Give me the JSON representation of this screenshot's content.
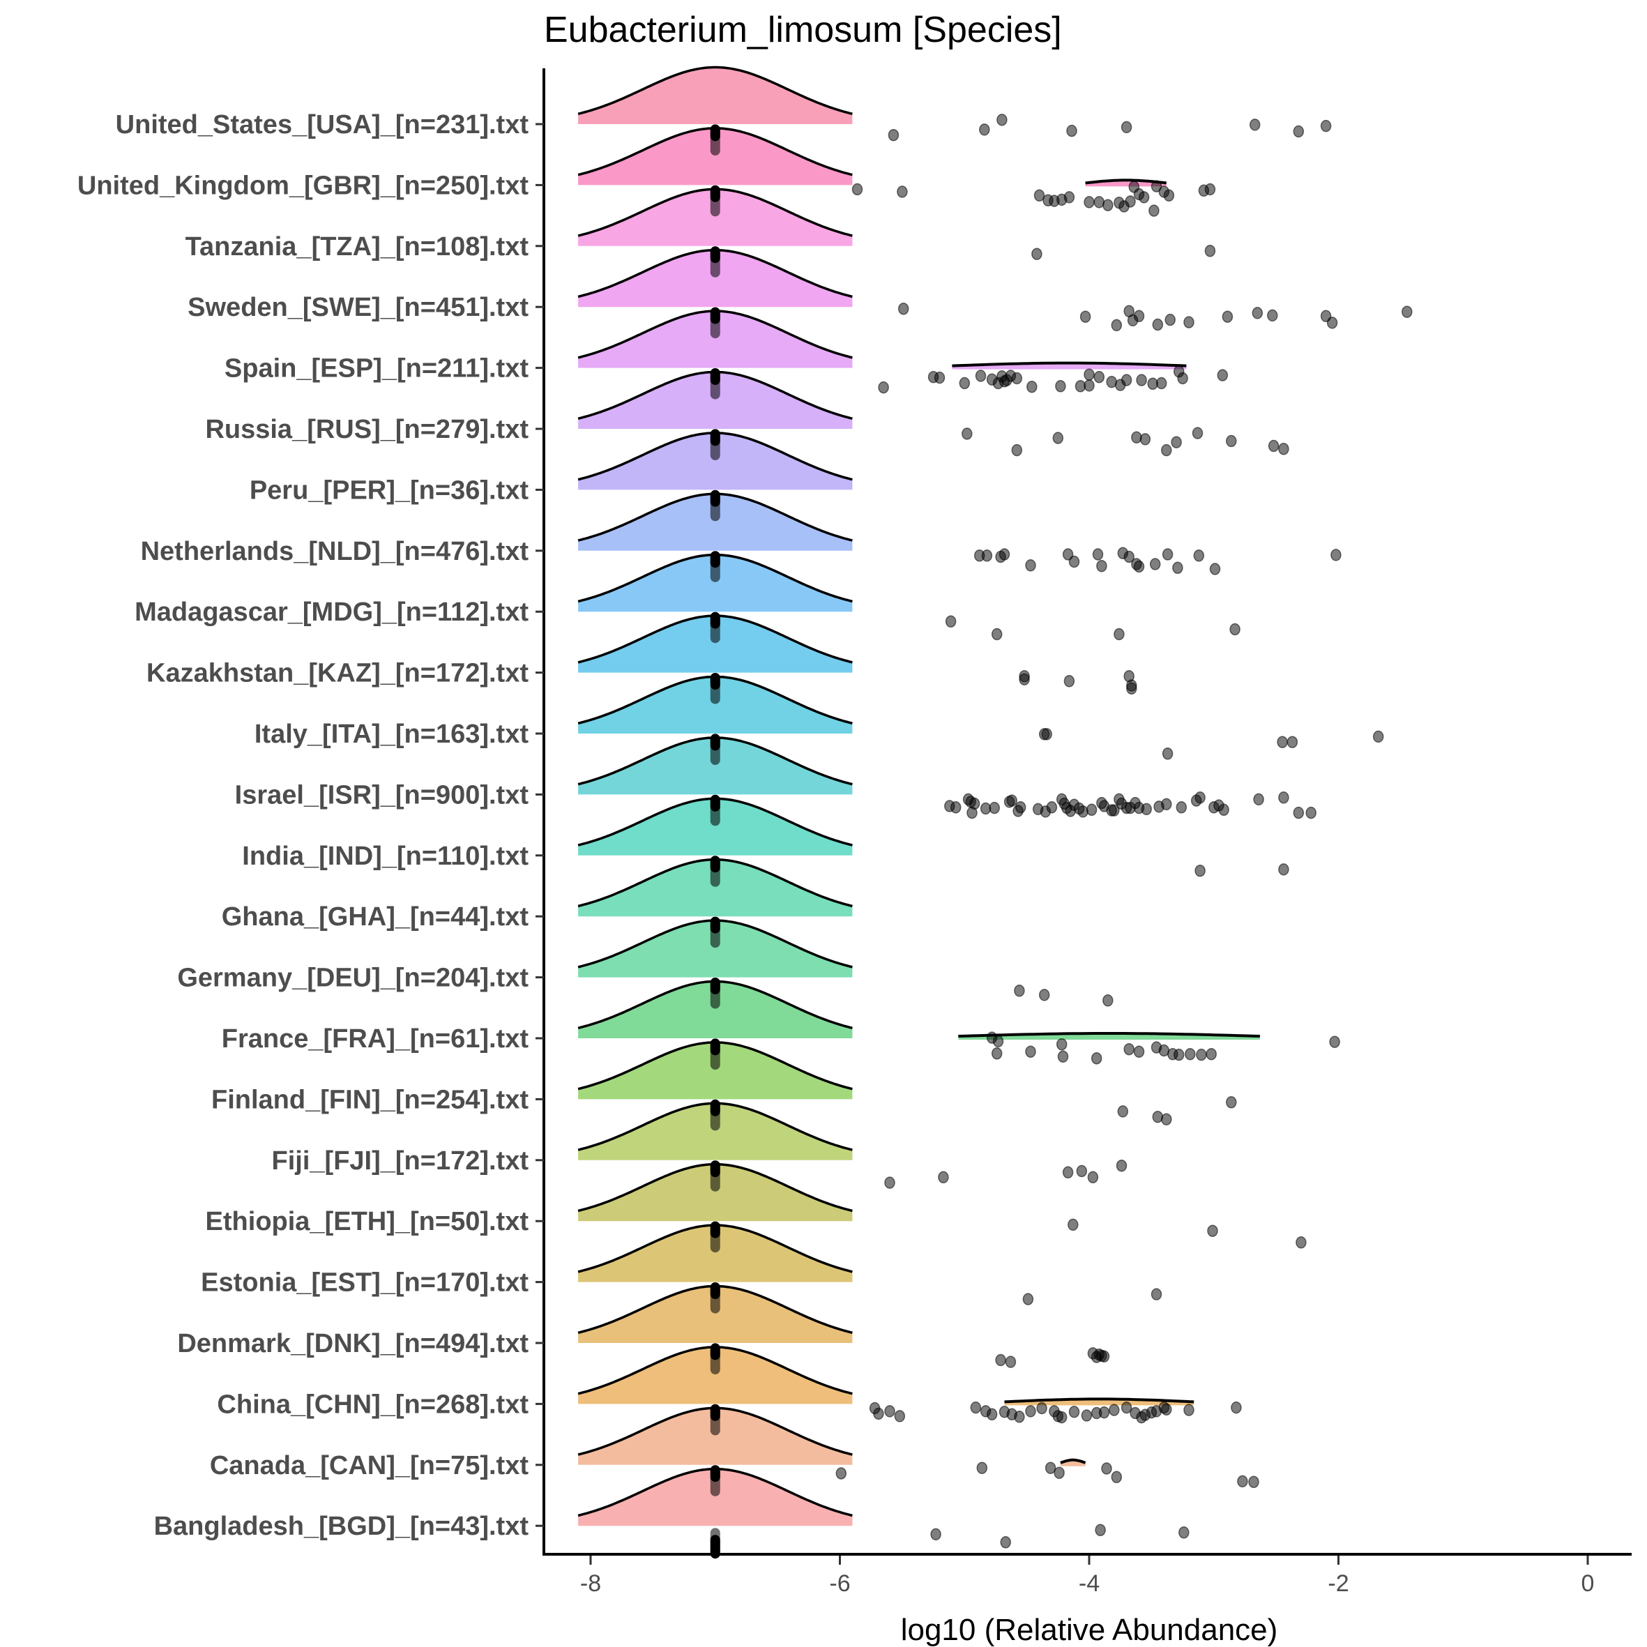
{
  "chart_data": {
    "type": "ridgeline",
    "title": "Eubacterium_limosum [Species]",
    "xlabel": "log10 (Relative Abundance)",
    "ylabel": "",
    "xlim": [
      -8.4,
      0.5
    ],
    "xticks": [
      -8,
      -6,
      -4,
      -2,
      0
    ],
    "xtick_labels": [
      "-8",
      "-6",
      "-4",
      "-2",
      "0"
    ],
    "grid": false,
    "legend": "none",
    "median_marker_x": -7,
    "density_peak_x": -7,
    "point_color": "#000000",
    "point_alpha": 0.5,
    "categories": [
      {
        "label": "United_States_[USA]_[n=231].txt",
        "color": "#F8A0B8",
        "small_ridge": null,
        "points": [
          [
            -5.57,
            0.18
          ],
          [
            -4.84,
            0.09
          ],
          [
            -4.7,
            -0.07
          ],
          [
            -4.14,
            0.11
          ],
          [
            -3.7,
            0.05
          ],
          [
            -2.67,
            0.01
          ],
          [
            -2.32,
            0.12
          ],
          [
            -2.1,
            0.03
          ]
        ]
      },
      {
        "label": "United_Kingdom_[GBR]_[n=250].txt",
        "color": "#FA98C8",
        "small_ridge": [
          -4.03,
          -3.38
        ],
        "points": [
          [
            -5.86,
            0.07
          ],
          [
            -5.5,
            0.11
          ],
          [
            -4.4,
            0.17
          ],
          [
            -4.33,
            0.25
          ],
          [
            -4.28,
            0.26
          ],
          [
            -4.22,
            0.24
          ],
          [
            -4.16,
            0.2
          ],
          [
            -4.0,
            0.28
          ],
          [
            -3.92,
            0.28
          ],
          [
            -3.85,
            0.33
          ],
          [
            -3.76,
            0.29
          ],
          [
            -3.72,
            0.35
          ],
          [
            -3.67,
            0.27
          ],
          [
            -3.64,
            0.03
          ],
          [
            -3.6,
            0.15
          ],
          [
            -3.56,
            0.2
          ],
          [
            -3.48,
            0.42
          ],
          [
            -3.46,
            0.02
          ],
          [
            -3.4,
            0.11
          ],
          [
            -3.36,
            0.17
          ],
          [
            -3.08,
            0.09
          ],
          [
            -3.03,
            0.07
          ]
        ]
      },
      {
        "label": "Tanzania_[TZA]_[n=108].txt",
        "color": "#F8A6E4",
        "small_ridge": null,
        "points": [
          [
            -4.42,
            0.13
          ],
          [
            -3.03,
            0.08
          ]
        ]
      },
      {
        "label": "Sweden_[SWE]_[n=451].txt",
        "color": "#F0A6F0",
        "small_ridge": null,
        "points": [
          [
            -5.49,
            0.03
          ],
          [
            -4.03,
            0.16
          ],
          [
            -3.78,
            0.3
          ],
          [
            -3.68,
            0.07
          ],
          [
            -3.65,
            0.22
          ],
          [
            -3.6,
            0.15
          ],
          [
            -3.45,
            0.29
          ],
          [
            -3.35,
            0.21
          ],
          [
            -3.2,
            0.25
          ],
          [
            -2.89,
            0.16
          ],
          [
            -2.65,
            0.1
          ],
          [
            -2.53,
            0.14
          ],
          [
            -2.1,
            0.15
          ],
          [
            -2.05,
            0.26
          ],
          [
            -1.45,
            0.08
          ]
        ]
      },
      {
        "label": "Spain_[ESP]_[n=211].txt",
        "color": "#E6AAF6",
        "small_ridge": [
          -5.1,
          -3.22
        ],
        "points": [
          [
            -5.65,
            0.32
          ],
          [
            -5.25,
            0.15
          ],
          [
            -5.2,
            0.16
          ],
          [
            -5.0,
            0.25
          ],
          [
            -4.87,
            0.13
          ],
          [
            -4.78,
            0.19
          ],
          [
            -4.73,
            0.25
          ],
          [
            -4.7,
            0.14
          ],
          [
            -4.68,
            0.22
          ],
          [
            -4.66,
            0.2
          ],
          [
            -4.63,
            0.13
          ],
          [
            -4.58,
            0.17
          ],
          [
            -4.46,
            0.31
          ],
          [
            -4.23,
            0.3
          ],
          [
            -4.07,
            0.3
          ],
          [
            -4.0,
            0.29
          ],
          [
            -4.0,
            0.11
          ],
          [
            -3.92,
            0.15
          ],
          [
            -3.82,
            0.23
          ],
          [
            -3.75,
            0.28
          ],
          [
            -3.7,
            0.2
          ],
          [
            -3.58,
            0.2
          ],
          [
            -3.49,
            0.26
          ],
          [
            -3.42,
            0.25
          ],
          [
            -3.28,
            0.06
          ],
          [
            -3.25,
            0.17
          ],
          [
            -2.93,
            0.12
          ]
        ]
      },
      {
        "label": "Russia_[RUS]_[n=279].txt",
        "color": "#D6B0F8",
        "small_ridge": null,
        "points": [
          [
            -4.98,
            0.08
          ],
          [
            -4.58,
            0.35
          ],
          [
            -4.25,
            0.15
          ],
          [
            -3.62,
            0.14
          ],
          [
            -3.55,
            0.17
          ],
          [
            -3.38,
            0.35
          ],
          [
            -3.3,
            0.22
          ],
          [
            -3.13,
            0.07
          ],
          [
            -2.86,
            0.2
          ],
          [
            -2.52,
            0.28
          ],
          [
            -2.44,
            0.33
          ]
        ]
      },
      {
        "label": "Peru_[PER]_[n=36].txt",
        "color": "#C2B6F8",
        "small_ridge": null,
        "points": []
      },
      {
        "label": "Netherlands_[NLD]_[n=476].txt",
        "color": "#A8C0F8",
        "small_ridge": null,
        "points": [
          [
            -4.88,
            0.08
          ],
          [
            -4.82,
            0.08
          ],
          [
            -4.71,
            0.1
          ],
          [
            -4.68,
            0.06
          ],
          [
            -4.47,
            0.24
          ],
          [
            -4.17,
            0.06
          ],
          [
            -4.12,
            0.18
          ],
          [
            -3.93,
            0.06
          ],
          [
            -3.9,
            0.25
          ],
          [
            -3.73,
            0.04
          ],
          [
            -3.68,
            0.1
          ],
          [
            -3.62,
            0.22
          ],
          [
            -3.6,
            0.26
          ],
          [
            -3.47,
            0.22
          ],
          [
            -3.37,
            0.06
          ],
          [
            -3.29,
            0.28
          ],
          [
            -3.12,
            0.08
          ],
          [
            -2.99,
            0.3
          ],
          [
            -2.02,
            0.07
          ]
        ]
      },
      {
        "label": "Madagascar_[MDG]_[n=112].txt",
        "color": "#88C8F6",
        "small_ridge": null,
        "points": [
          [
            -5.11,
            0.16
          ],
          [
            -4.74,
            0.37
          ],
          [
            -3.76,
            0.37
          ],
          [
            -2.83,
            0.29
          ]
        ]
      },
      {
        "label": "Kazakhstan_[KAZ]_[n=172].txt",
        "color": "#74CCEE",
        "small_ridge": null,
        "points": [
          [
            -4.52,
            0.06
          ],
          [
            -4.52,
            0.11
          ],
          [
            -4.16,
            0.14
          ],
          [
            -3.68,
            0.06
          ],
          [
            -3.66,
            0.21
          ],
          [
            -3.66,
            0.26
          ]
        ]
      },
      {
        "label": "Italy_[ITA]_[n=163].txt",
        "color": "#70D2E4",
        "small_ridge": null,
        "points": [
          [
            -4.36,
            0.01
          ],
          [
            -4.34,
            0.01
          ],
          [
            -3.37,
            0.33
          ],
          [
            -2.45,
            0.14
          ],
          [
            -2.37,
            0.14
          ],
          [
            -1.68,
            0.05
          ]
        ]
      },
      {
        "label": "Israel_[ISR]_[n=900].txt",
        "color": "#74D6D8",
        "small_ridge": null,
        "points": [
          [
            -5.12,
            0.19
          ],
          [
            -5.07,
            0.21
          ],
          [
            -4.97,
            0.08
          ],
          [
            -4.95,
            0.12
          ],
          [
            -4.94,
            0.3
          ],
          [
            -4.92,
            0.15
          ],
          [
            -4.83,
            0.23
          ],
          [
            -4.76,
            0.22
          ],
          [
            -4.64,
            0.12
          ],
          [
            -4.62,
            0.1
          ],
          [
            -4.57,
            0.27
          ],
          [
            -4.55,
            0.21
          ],
          [
            -4.41,
            0.24
          ],
          [
            -4.35,
            0.28
          ],
          [
            -4.3,
            0.21
          ],
          [
            -4.22,
            0.08
          ],
          [
            -4.2,
            0.15
          ],
          [
            -4.18,
            0.22
          ],
          [
            -4.15,
            0.27
          ],
          [
            -4.12,
            0.17
          ],
          [
            -4.08,
            0.23
          ],
          [
            -4.05,
            0.28
          ],
          [
            -3.98,
            0.25
          ],
          [
            -3.9,
            0.14
          ],
          [
            -3.88,
            0.19
          ],
          [
            -3.82,
            0.26
          ],
          [
            -3.8,
            0.26
          ],
          [
            -3.76,
            0.08
          ],
          [
            -3.74,
            0.15
          ],
          [
            -3.7,
            0.22
          ],
          [
            -3.67,
            0.22
          ],
          [
            -3.63,
            0.14
          ],
          [
            -3.6,
            0.22
          ],
          [
            -3.54,
            0.24
          ],
          [
            -3.44,
            0.2
          ],
          [
            -3.38,
            0.16
          ],
          [
            -3.26,
            0.21
          ],
          [
            -3.14,
            0.1
          ],
          [
            -3.0,
            0.21
          ],
          [
            -2.96,
            0.18
          ],
          [
            -2.92,
            0.25
          ],
          [
            -2.64,
            0.08
          ],
          [
            -2.32,
            0.3
          ],
          [
            -2.22,
            0.3
          ],
          [
            -3.11,
            0.05
          ],
          [
            -2.44,
            0.05
          ]
        ]
      },
      {
        "label": "India_[IND]_[n=110].txt",
        "color": "#70DCCA",
        "small_ridge": null,
        "points": [
          [
            -3.11,
            0.25
          ],
          [
            -2.44,
            0.23
          ]
        ]
      },
      {
        "label": "Ghana_[GHA]_[n=44].txt",
        "color": "#78DEBC",
        "small_ridge": null,
        "points": []
      },
      {
        "label": "Germany_[DEU]_[n=204].txt",
        "color": "#7EDEB0",
        "small_ridge": null,
        "points": [
          [
            -4.56,
            0.22
          ],
          [
            -4.36,
            0.29
          ],
          [
            -3.85,
            0.38
          ]
        ]
      },
      {
        "label": "France_[FRA]_[n=61].txt",
        "color": "#80DA98",
        "small_ridge": [
          -5.05,
          -2.63
        ],
        "points": [
          [
            -4.78,
            -0.01
          ],
          [
            -4.73,
            0.05
          ],
          [
            -4.74,
            0.25
          ],
          [
            -4.47,
            0.22
          ],
          [
            -4.22,
            0.1
          ],
          [
            -4.21,
            0.3
          ],
          [
            -3.94,
            0.33
          ],
          [
            -3.68,
            0.18
          ],
          [
            -3.6,
            0.22
          ],
          [
            -3.46,
            0.15
          ],
          [
            -3.4,
            0.2
          ],
          [
            -3.33,
            0.26
          ],
          [
            -3.28,
            0.27
          ],
          [
            -3.19,
            0.26
          ],
          [
            -3.1,
            0.27
          ],
          [
            -3.02,
            0.26
          ],
          [
            -2.03,
            0.06
          ]
        ]
      },
      {
        "label": "Finland_[FIN]_[n=254].txt",
        "color": "#A4D87C",
        "small_ridge": null,
        "points": [
          [
            -3.73,
            0.2
          ],
          [
            -3.45,
            0.29
          ],
          [
            -3.38,
            0.33
          ],
          [
            -2.86,
            0.05
          ]
        ]
      },
      {
        "label": "Fiji_[FJI]_[n=172].txt",
        "color": "#C0D47C",
        "small_ridge": null,
        "points": [
          [
            -5.6,
            0.37
          ],
          [
            -5.17,
            0.28
          ],
          [
            -4.17,
            0.2
          ],
          [
            -4.06,
            0.18
          ],
          [
            -3.97,
            0.28
          ],
          [
            -3.74,
            0.09
          ]
        ]
      },
      {
        "label": "Ethiopia_[ETH]_[n=50].txt",
        "color": "#CCCC78",
        "small_ridge": null,
        "points": [
          [
            -4.13,
            0.06
          ],
          [
            -3.01,
            0.16
          ],
          [
            -2.3,
            0.35
          ]
        ]
      },
      {
        "label": "Estonia_[EST]_[n=170].txt",
        "color": "#DCC676",
        "small_ridge": null,
        "points": [
          [
            -4.49,
            0.28
          ],
          [
            -3.46,
            0.2
          ]
        ]
      },
      {
        "label": "Denmark_[DNK]_[n=494].txt",
        "color": "#E8C07A",
        "small_ridge": null,
        "points": [
          [
            -4.71,
            0.28
          ],
          [
            -4.63,
            0.31
          ],
          [
            -3.97,
            0.17
          ],
          [
            -3.94,
            0.23
          ],
          [
            -3.92,
            0.19
          ],
          [
            -3.9,
            0.21
          ],
          [
            -3.88,
            0.22
          ]
        ]
      },
      {
        "label": "China_[CHN]_[n=268].txt",
        "color": "#EEBE7A",
        "small_ridge": [
          -4.68,
          -3.16
        ],
        "points": [
          [
            -5.72,
            0.07
          ],
          [
            -5.69,
            0.16
          ],
          [
            -5.6,
            0.12
          ],
          [
            -5.52,
            0.2
          ],
          [
            -4.91,
            0.06
          ],
          [
            -4.83,
            0.12
          ],
          [
            -4.78,
            0.17
          ],
          [
            -4.68,
            0.13
          ],
          [
            -4.62,
            0.17
          ],
          [
            -4.56,
            0.21
          ],
          [
            -4.47,
            0.12
          ],
          [
            -4.38,
            0.07
          ],
          [
            -4.28,
            0.12
          ],
          [
            -4.25,
            0.2
          ],
          [
            -4.22,
            0.22
          ],
          [
            -4.12,
            0.13
          ],
          [
            -4.02,
            0.19
          ],
          [
            -3.94,
            0.15
          ],
          [
            -3.88,
            0.14
          ],
          [
            -3.8,
            0.1
          ],
          [
            -3.7,
            0.06
          ],
          [
            -3.63,
            0.15
          ],
          [
            -3.58,
            0.22
          ],
          [
            -3.55,
            0.18
          ],
          [
            -3.5,
            0.14
          ],
          [
            -3.46,
            0.12
          ],
          [
            -3.4,
            0.06
          ],
          [
            -3.38,
            0.09
          ],
          [
            -3.2,
            0.1
          ],
          [
            -2.82,
            0.06
          ]
        ]
      },
      {
        "label": "Canada_[CAN]_[n=75].txt",
        "color": "#F4BC9E",
        "small_ridge": [
          -4.23,
          -4.03
        ],
        "points": [
          [
            -5.99,
            0.14
          ],
          [
            -4.86,
            0.05
          ],
          [
            -4.31,
            0.05
          ],
          [
            -4.24,
            0.13
          ],
          [
            -3.86,
            0.06
          ],
          [
            -3.78,
            0.2
          ],
          [
            -2.77,
            0.27
          ],
          [
            -2.68,
            0.28
          ]
        ]
      },
      {
        "label": "Bangladesh_[BGD]_[n=43].txt",
        "color": "#F8B0B0",
        "small_ridge": null,
        "points": [
          [
            -5.23,
            0.14
          ],
          [
            -4.67,
            0.27
          ],
          [
            -3.91,
            0.07
          ],
          [
            -3.24,
            0.11
          ]
        ]
      }
    ]
  }
}
